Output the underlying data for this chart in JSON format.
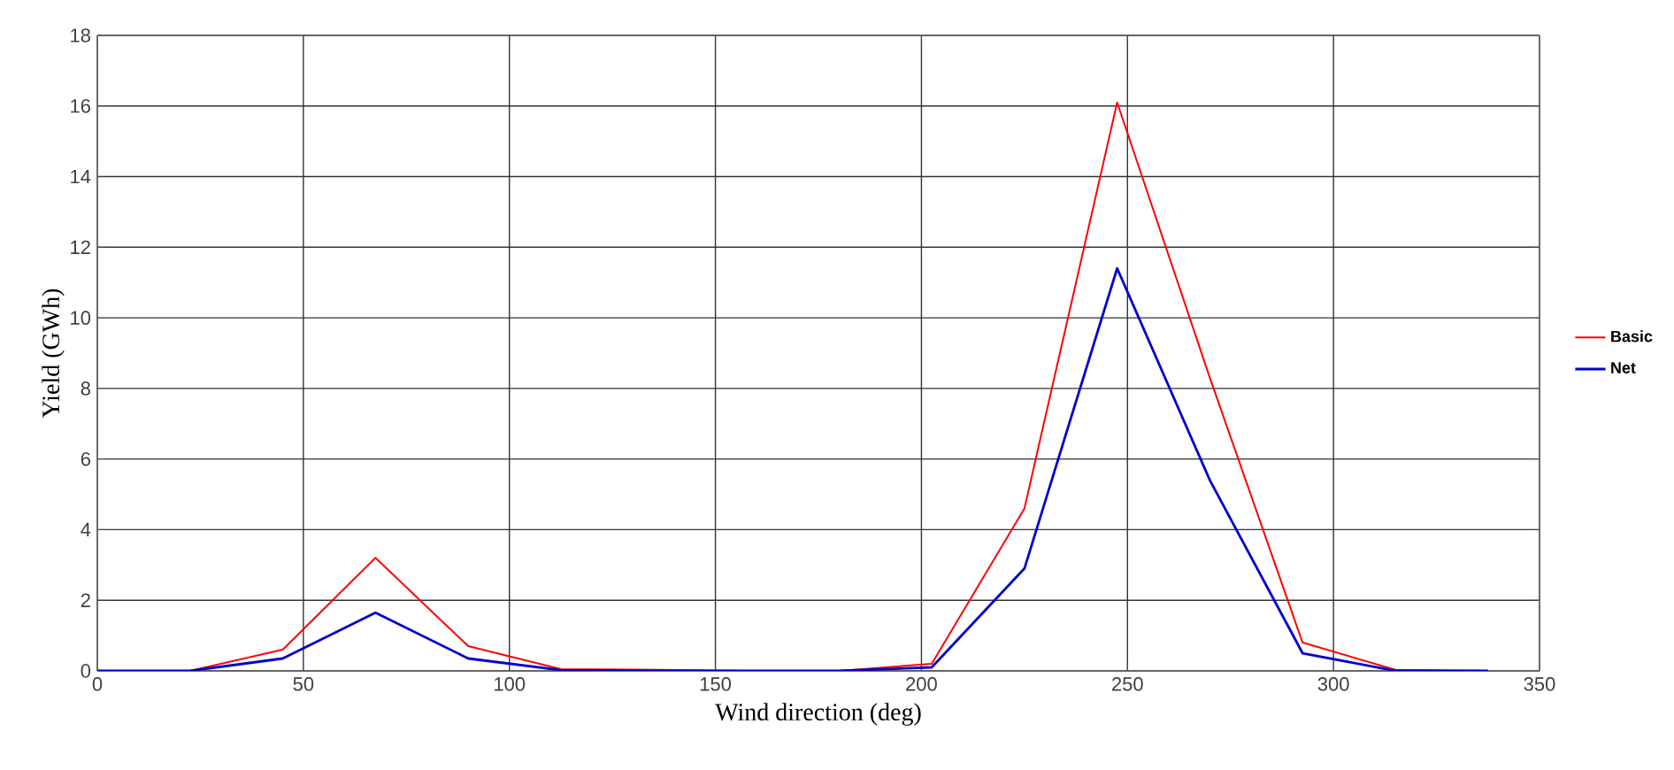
{
  "chart_data": {
    "type": "line",
    "xlabel": "Wind direction (deg)",
    "ylabel": "Yield (GWh)",
    "x": [
      0,
      22.5,
      45,
      67.5,
      90,
      112.5,
      135,
      157.5,
      180,
      202.5,
      225,
      247.5,
      270,
      292.5,
      315,
      337.5
    ],
    "series": [
      {
        "name": "Basic",
        "color": "#ff0000",
        "values": [
          0,
          0,
          0.6,
          3.2,
          0.7,
          0.05,
          0.03,
          0,
          0,
          0.2,
          4.6,
          16.1,
          8.3,
          0.8,
          0.03,
          0
        ]
      },
      {
        "name": "Net",
        "color": "#0000cc",
        "values": [
          0,
          0,
          0.35,
          1.65,
          0.35,
          0.02,
          0,
          0,
          0,
          0.1,
          2.9,
          11.4,
          5.4,
          0.5,
          0,
          0
        ]
      }
    ],
    "xlim": [
      0,
      350
    ],
    "ylim": [
      0,
      18
    ],
    "xticks": [
      0,
      50,
      100,
      150,
      200,
      250,
      300,
      350
    ],
    "yticks": [
      0,
      2,
      4,
      6,
      8,
      10,
      12,
      14,
      16,
      18
    ],
    "grid": true,
    "legend": "right",
    "marker": "none",
    "line_style": "solid"
  }
}
